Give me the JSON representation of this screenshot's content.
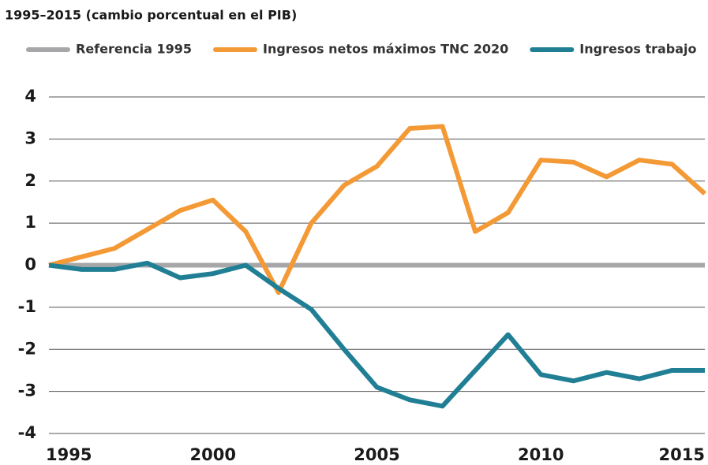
{
  "chart_data": {
    "type": "line",
    "title": "1995–2015 (cambio porcentual en el PIB)",
    "x": [
      1995,
      1996,
      1997,
      1998,
      1999,
      2000,
      2001,
      2002,
      2003,
      2004,
      2005,
      2006,
      2007,
      2008,
      2009,
      2010,
      2011,
      2012,
      2013,
      2014,
      2015
    ],
    "series": [
      {
        "name": "Referencia 1995",
        "color": "#a7a7a9",
        "values": [
          0,
          0,
          0,
          0,
          0,
          0,
          0,
          0,
          0,
          0,
          0,
          0,
          0,
          0,
          0,
          0,
          0,
          0,
          0,
          0,
          0
        ]
      },
      {
        "name": "Ingresos netos máximos TNC 2020",
        "color": "#f39a36",
        "values": [
          0,
          0.2,
          0.4,
          0.85,
          1.3,
          1.55,
          0.8,
          -0.65,
          1.0,
          1.9,
          2.35,
          3.25,
          3.3,
          0.8,
          1.25,
          2.5,
          2.45,
          2.1,
          2.5,
          2.4,
          1.7
        ]
      },
      {
        "name": "Ingresos trabajo",
        "color": "#207f94",
        "values": [
          0,
          -0.1,
          -0.1,
          0.05,
          -0.3,
          -0.2,
          0,
          -0.55,
          -1.05,
          -2.0,
          -2.9,
          -3.2,
          -3.35,
          -2.5,
          -1.65,
          -2.6,
          -2.75,
          -2.55,
          -2.7,
          -2.5,
          -2.5
        ]
      }
    ],
    "xlim": [
      1995,
      2015
    ],
    "xticks": [
      1995,
      2000,
      2005,
      2010,
      2015
    ],
    "ylim": [
      -4,
      4
    ],
    "yticks": [
      -4,
      -3,
      -2,
      -1,
      0,
      1,
      2,
      3,
      4
    ],
    "grid": true
  }
}
